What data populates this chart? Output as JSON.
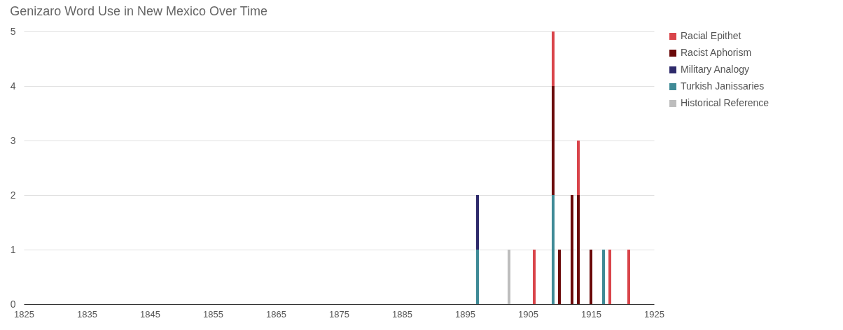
{
  "chart_data": {
    "type": "bar",
    "title": "Genizaro Word Use in New Mexico Over Time",
    "x": [
      1897,
      1902,
      1906,
      1909,
      1910,
      1912,
      1913,
      1915,
      1917,
      1918,
      1921
    ],
    "stacked": true,
    "series": [
      {
        "name": "Historical Reference",
        "color": "#bdbdbd",
        "values": [
          null,
          1,
          null,
          null,
          null,
          null,
          null,
          null,
          null,
          null,
          null
        ]
      },
      {
        "name": "Turkish Janissaries",
        "color": "#3f8a96",
        "values": [
          1,
          null,
          null,
          2,
          null,
          null,
          null,
          null,
          1,
          null,
          null
        ]
      },
      {
        "name": "Military Analogy",
        "color": "#2e2a6b",
        "values": [
          1,
          null,
          null,
          null,
          null,
          null,
          null,
          null,
          null,
          null,
          null
        ]
      },
      {
        "name": "Racist Aphorism",
        "color": "#6b0a0a",
        "values": [
          null,
          null,
          null,
          2,
          1,
          2,
          2,
          1,
          null,
          null,
          null
        ]
      },
      {
        "name": "Racial Epithet",
        "color": "#d9444a",
        "values": [
          null,
          null,
          1,
          1,
          null,
          null,
          1,
          null,
          null,
          1,
          1
        ]
      }
    ],
    "xlim": [
      1825,
      1925
    ],
    "xticks": [
      1825,
      1835,
      1845,
      1855,
      1865,
      1875,
      1885,
      1895,
      1905,
      1915,
      1925
    ],
    "ylim": [
      0,
      5
    ],
    "yticks": [
      0,
      1,
      2,
      3,
      4,
      5
    ],
    "grid": "y",
    "legend": "right"
  }
}
